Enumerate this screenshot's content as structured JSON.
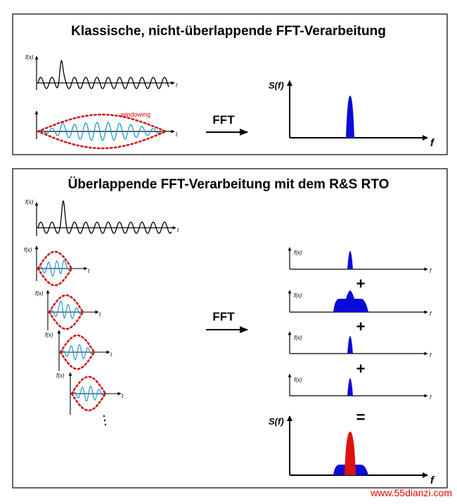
{
  "panel1": {
    "title": "Klassische, nicht-überlappende FFT-Verarbeitung",
    "fx_label": "f(x)",
    "t_label": "t",
    "windowing_label": "windowing",
    "fft_label": "FFT",
    "spectrum_ylabel": "S(f)",
    "spectrum_xlabel": "f"
  },
  "panel2": {
    "title": "Überlappende FFT-Verarbeitung mit dem R&S RTO",
    "fx_label": "f(x)",
    "t_label": "t",
    "fft_label": "FFT",
    "spectrum_ylabel": "S(f)",
    "spectrum_xlabel": "f",
    "plus": "+",
    "equals": "=",
    "dots": ":"
  },
  "watermark": "www.55dianzi.com",
  "colors": {
    "signal": "#000000",
    "windowed_signal": "#1a9ad6",
    "window": "#d01010",
    "spectrum": "#0a0ad8",
    "sum_peak": "#e01010"
  }
}
